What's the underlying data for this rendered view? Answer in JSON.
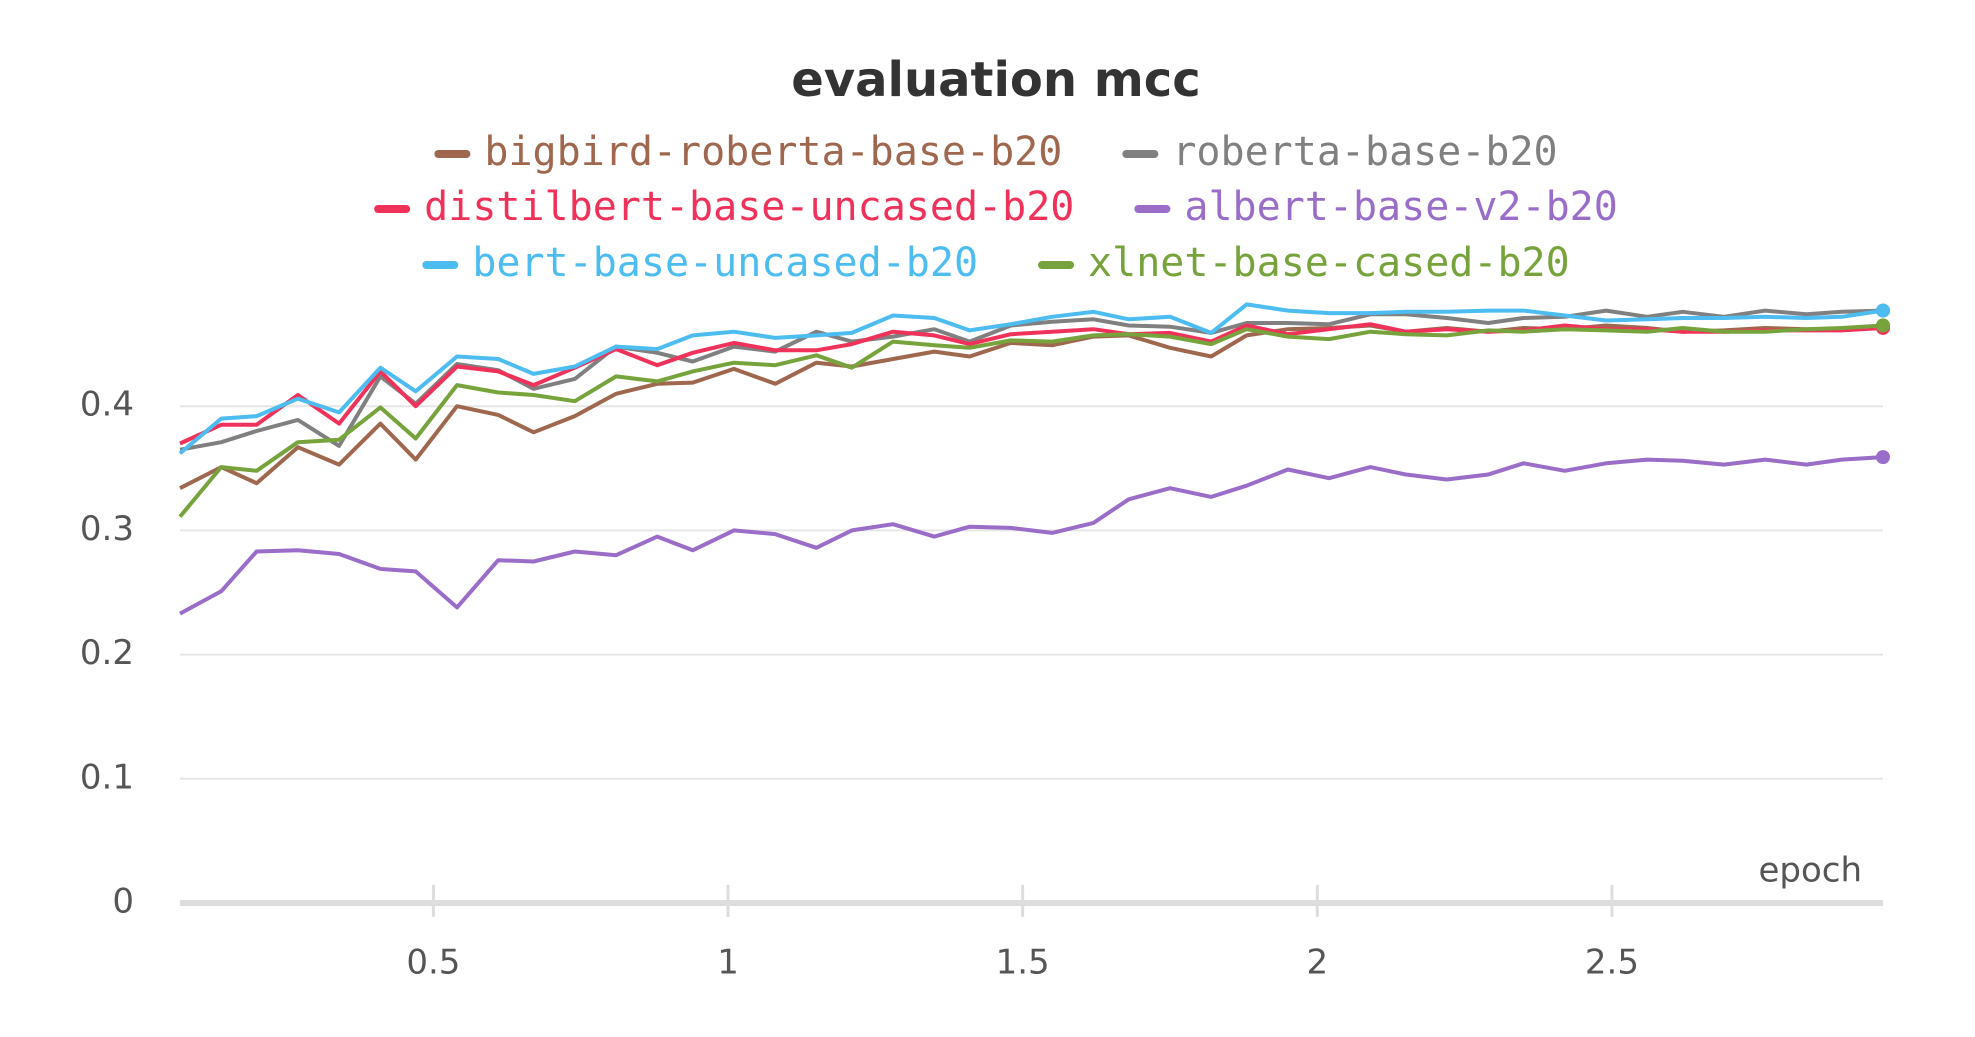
{
  "chart_data": {
    "type": "line",
    "title": "evaluation mcc",
    "xlabel": "epoch",
    "x": [
      0.07,
      0.14,
      0.2,
      0.27,
      0.34,
      0.41,
      0.47,
      0.54,
      0.61,
      0.67,
      0.74,
      0.81,
      0.88,
      0.94,
      1.01,
      1.08,
      1.15,
      1.21,
      1.28,
      1.35,
      1.41,
      1.48,
      1.55,
      1.62,
      1.68,
      1.75,
      1.82,
      1.88,
      1.95,
      2.02,
      2.09,
      2.15,
      2.22,
      2.29,
      2.35,
      2.42,
      2.49,
      2.56,
      2.62,
      2.69,
      2.76,
      2.83,
      2.89,
      2.96
    ],
    "series": [
      {
        "name": "bigbird-roberta-base-b20",
        "color": "#a0674f",
        "values": [
          0.334,
          0.351,
          0.338,
          0.367,
          0.353,
          0.386,
          0.357,
          0.4,
          0.393,
          0.379,
          0.392,
          0.41,
          0.418,
          0.419,
          0.43,
          0.418,
          0.435,
          0.432,
          0.438,
          0.444,
          0.44,
          0.451,
          0.449,
          0.456,
          0.457,
          0.447,
          0.44,
          0.457,
          0.462,
          0.463,
          0.465,
          0.46,
          0.463,
          0.46,
          0.463,
          0.462,
          0.465,
          0.463,
          0.46,
          0.461,
          0.463,
          0.462,
          0.462,
          0.465
        ]
      },
      {
        "name": "roberta-base-b20",
        "color": "#808080",
        "values": [
          0.365,
          0.371,
          0.38,
          0.389,
          0.368,
          0.424,
          0.402,
          0.434,
          0.429,
          0.414,
          0.422,
          0.448,
          0.443,
          0.436,
          0.448,
          0.444,
          0.46,
          0.452,
          0.456,
          0.462,
          0.452,
          0.465,
          0.468,
          0.47,
          0.465,
          0.464,
          0.459,
          0.467,
          0.467,
          0.466,
          0.474,
          0.474,
          0.471,
          0.467,
          0.471,
          0.472,
          0.477,
          0.472,
          0.476,
          0.472,
          0.477,
          0.474,
          0.476,
          0.477
        ]
      },
      {
        "name": "distilbert-base-uncased-b20",
        "color": "#f0325a",
        "values": [
          0.37,
          0.385,
          0.385,
          0.409,
          0.386,
          0.428,
          0.4,
          0.432,
          0.428,
          0.417,
          0.431,
          0.446,
          0.433,
          0.443,
          0.451,
          0.445,
          0.445,
          0.45,
          0.46,
          0.457,
          0.45,
          0.458,
          0.46,
          0.462,
          0.458,
          0.459,
          0.452,
          0.465,
          0.458,
          0.462,
          0.466,
          0.46,
          0.462,
          0.46,
          0.461,
          0.465,
          0.462,
          0.462,
          0.46,
          0.46,
          0.461,
          0.461,
          0.461,
          0.463
        ]
      },
      {
        "name": "albert-base-v2-b20",
        "color": "#9a6dc8",
        "values": [
          0.233,
          0.251,
          0.283,
          0.284,
          0.281,
          0.269,
          0.267,
          0.238,
          0.276,
          0.275,
          0.283,
          0.28,
          0.295,
          0.284,
          0.3,
          0.297,
          0.286,
          0.3,
          0.305,
          0.295,
          0.303,
          0.302,
          0.298,
          0.306,
          0.325,
          0.334,
          0.327,
          0.336,
          0.349,
          0.342,
          0.351,
          0.345,
          0.341,
          0.345,
          0.354,
          0.348,
          0.354,
          0.357,
          0.356,
          0.353,
          0.357,
          0.353,
          0.357,
          0.359
        ]
      },
      {
        "name": "bert-base-uncased-b20",
        "color": "#4dbcf0",
        "values": [
          0.362,
          0.39,
          0.392,
          0.406,
          0.395,
          0.431,
          0.412,
          0.44,
          0.438,
          0.426,
          0.432,
          0.448,
          0.446,
          0.457,
          0.46,
          0.455,
          0.457,
          0.459,
          0.473,
          0.471,
          0.461,
          0.466,
          0.472,
          0.476,
          0.47,
          0.472,
          0.459,
          0.482,
          0.477,
          0.475,
          0.475,
          0.476,
          0.476,
          0.477,
          0.477,
          0.473,
          0.469,
          0.47,
          0.471,
          0.471,
          0.472,
          0.471,
          0.472,
          0.477
        ]
      },
      {
        "name": "xlnet-base-cased-b20",
        "color": "#77a33c",
        "values": [
          0.311,
          0.351,
          0.348,
          0.371,
          0.373,
          0.399,
          0.374,
          0.417,
          0.411,
          0.409,
          0.404,
          0.424,
          0.42,
          0.428,
          0.435,
          0.433,
          0.441,
          0.431,
          0.452,
          0.449,
          0.447,
          0.453,
          0.452,
          0.457,
          0.458,
          0.456,
          0.45,
          0.462,
          0.456,
          0.454,
          0.46,
          0.458,
          0.457,
          0.461,
          0.46,
          0.462,
          0.461,
          0.46,
          0.463,
          0.46,
          0.46,
          0.462,
          0.463,
          0.465
        ]
      }
    ],
    "xlim": [
      0.07,
      2.96
    ],
    "xticks": [
      0.5,
      1,
      1.5,
      2,
      2.5
    ],
    "ylim": [
      0,
      0.5
    ],
    "yticks": [
      0,
      0.1,
      0.2,
      0.3,
      0.4
    ],
    "grid": true
  }
}
